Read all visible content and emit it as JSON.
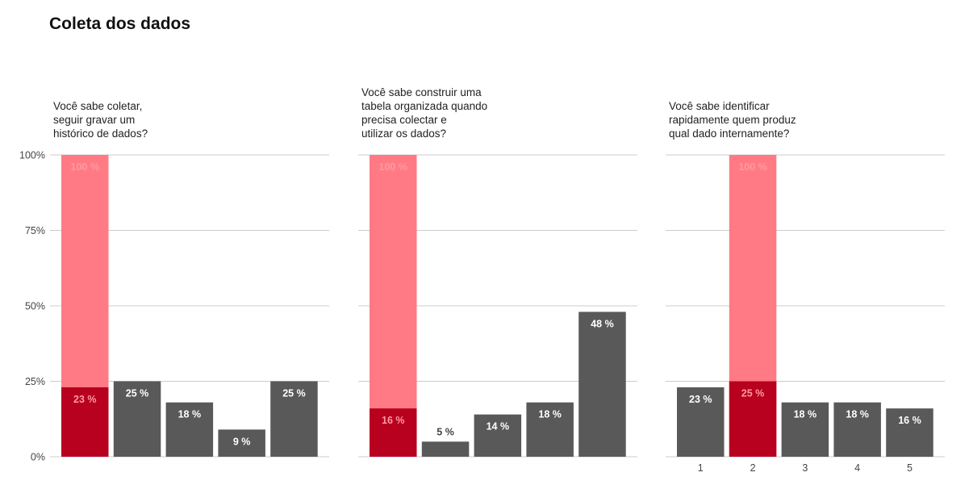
{
  "title": "Coleta dos dados",
  "colors": {
    "bar": "#595959",
    "highlight": "#b8001f",
    "background_bar": "#ff7a85",
    "label_on_dark": "#ffffff",
    "label_on_highlight": "#ff9aa3",
    "label_above": "#444444",
    "grid": "#cccccc"
  },
  "chart_data": [
    {
      "type": "bar",
      "title": "Você sabe coletar, seguir gravar um histórico de dados?",
      "title_lines": [
        "Você sabe coletar,",
        "seguir gravar um",
        "histórico de dados?"
      ],
      "categories": [
        "1",
        "2",
        "3",
        "4",
        "5"
      ],
      "values": [
        23,
        25,
        18,
        9,
        25
      ],
      "labels": [
        "23 %",
        "25 %",
        "18 %",
        "9 %",
        "25 %"
      ],
      "highlight_index": 0,
      "background_bar": {
        "index": 0,
        "value": 100,
        "label": "100 %"
      },
      "ylim": [
        0,
        100
      ],
      "yticks": [
        0,
        25,
        50,
        75,
        100
      ],
      "ytick_labels": [
        "0%",
        "25%",
        "50%",
        "75%",
        "100%"
      ],
      "show_xticks": false,
      "show_yticks": true,
      "grid": true
    },
    {
      "type": "bar",
      "title": "Você sabe construir uma tabela organizada quando precisa colectar e utilizar os dados?",
      "title_lines": [
        "Você sabe construir uma",
        "tabela organizada quando",
        "precisa colectar e",
        "utilizar os dados?"
      ],
      "categories": [
        "1",
        "2",
        "3",
        "4",
        "5"
      ],
      "values": [
        16,
        5,
        14,
        18,
        48
      ],
      "labels": [
        "16 %",
        "5 %",
        "14 %",
        "18 %",
        "48 %"
      ],
      "highlight_index": 0,
      "background_bar": {
        "index": 0,
        "value": 100,
        "label": "100 %"
      },
      "ylim": [
        0,
        100
      ],
      "yticks": [
        0,
        25,
        50,
        75,
        100
      ],
      "show_xticks": false,
      "show_yticks": false,
      "grid": true
    },
    {
      "type": "bar",
      "title": "Você sabe identificar rapidamente quem produz qual dado internamente?",
      "title_lines": [
        "Você sabe identificar",
        "rapidamente quem produz",
        "qual dado internamente?"
      ],
      "categories": [
        "1",
        "2",
        "3",
        "4",
        "5"
      ],
      "values": [
        23,
        25,
        18,
        18,
        16
      ],
      "labels": [
        "23 %",
        "25 %",
        "18 %",
        "18 %",
        "16 %"
      ],
      "highlight_index": 1,
      "background_bar": {
        "index": 1,
        "value": 100,
        "label": "100 %"
      },
      "ylim": [
        0,
        100
      ],
      "yticks": [
        0,
        25,
        50,
        75,
        100
      ],
      "show_xticks": true,
      "show_yticks": false,
      "grid": true
    }
  ]
}
